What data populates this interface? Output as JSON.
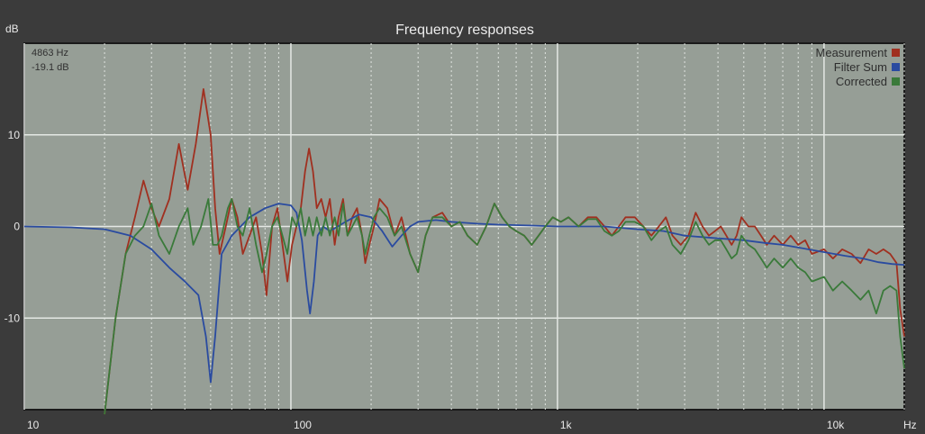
{
  "chart_data": {
    "type": "line",
    "title": "Frequency responses",
    "ylabel": "dB",
    "xlabel": "Hz",
    "x_scale": "log",
    "xlim": [
      10,
      20000
    ],
    "ylim": [
      -20,
      20
    ],
    "grid": true,
    "legend_position": "top-right",
    "background_color": "#969e96",
    "x_tick_labels": [
      {
        "value": 10,
        "label": "10"
      },
      {
        "value": 100,
        "label": "100"
      },
      {
        "value": 1000,
        "label": "1k"
      },
      {
        "value": 10000,
        "label": "10k"
      }
    ],
    "y_tick_labels": [
      {
        "value": 10,
        "label": "10"
      },
      {
        "value": 0,
        "label": "0"
      },
      {
        "value": -10,
        "label": "-10"
      }
    ],
    "readout": {
      "frequency": "4863 Hz",
      "level": "-19.1 dB"
    },
    "series": [
      {
        "name": "Measurement",
        "color": "#a03020",
        "points": [
          [
            20,
            -20.5
          ],
          [
            22,
            -10
          ],
          [
            24,
            -3
          ],
          [
            26,
            1
          ],
          [
            28,
            5
          ],
          [
            30,
            2
          ],
          [
            32,
            0
          ],
          [
            35,
            3
          ],
          [
            38,
            9
          ],
          [
            41,
            4
          ],
          [
            44,
            9
          ],
          [
            47,
            15
          ],
          [
            50,
            10
          ],
          [
            52,
            2
          ],
          [
            54,
            -3
          ],
          [
            57,
            0
          ],
          [
            60,
            3
          ],
          [
            63,
            1
          ],
          [
            66,
            -3
          ],
          [
            70,
            -1
          ],
          [
            74,
            1
          ],
          [
            78,
            -3
          ],
          [
            81,
            -7.5
          ],
          [
            85,
            0
          ],
          [
            89,
            2
          ],
          [
            93,
            -2
          ],
          [
            97,
            -6
          ],
          [
            101,
            -2
          ],
          [
            105,
            0
          ],
          [
            109,
            2
          ],
          [
            113,
            6
          ],
          [
            117,
            8.5
          ],
          [
            121,
            6
          ],
          [
            125,
            2
          ],
          [
            130,
            3
          ],
          [
            135,
            1
          ],
          [
            140,
            3
          ],
          [
            146,
            -2
          ],
          [
            151,
            1
          ],
          [
            157,
            3
          ],
          [
            163,
            -1
          ],
          [
            170,
            1
          ],
          [
            177,
            2
          ],
          [
            185,
            -1
          ],
          [
            190,
            -4
          ],
          [
            197,
            -2
          ],
          [
            205,
            0
          ],
          [
            215,
            3
          ],
          [
            230,
            2
          ],
          [
            245,
            -1
          ],
          [
            260,
            1
          ],
          [
            280,
            -3
          ],
          [
            300,
            -5
          ],
          [
            320,
            -1
          ],
          [
            340,
            1
          ],
          [
            370,
            1.5
          ],
          [
            400,
            0
          ],
          [
            430,
            0.5
          ],
          [
            460,
            -1
          ],
          [
            500,
            -2
          ],
          [
            540,
            0
          ],
          [
            580,
            2.5
          ],
          [
            620,
            1
          ],
          [
            660,
            0
          ],
          [
            700,
            -0.5
          ],
          [
            750,
            -1
          ],
          [
            800,
            -2
          ],
          [
            850,
            -1
          ],
          [
            900,
            0
          ],
          [
            960,
            1
          ],
          [
            1030,
            0.5
          ],
          [
            1100,
            1
          ],
          [
            1200,
            0
          ],
          [
            1300,
            1
          ],
          [
            1400,
            1
          ],
          [
            1500,
            0
          ],
          [
            1600,
            -1
          ],
          [
            1700,
            0
          ],
          [
            1800,
            1
          ],
          [
            1950,
            1
          ],
          [
            2100,
            0
          ],
          [
            2250,
            -1
          ],
          [
            2400,
            0
          ],
          [
            2550,
            1
          ],
          [
            2700,
            -1
          ],
          [
            2900,
            -2
          ],
          [
            3100,
            -1
          ],
          [
            3300,
            1.5
          ],
          [
            3500,
            0
          ],
          [
            3700,
            -1
          ],
          [
            3900,
            -0.5
          ],
          [
            4100,
            0
          ],
          [
            4300,
            -1
          ],
          [
            4500,
            -2
          ],
          [
            4700,
            -1
          ],
          [
            4900,
            1
          ],
          [
            5200,
            0
          ],
          [
            5500,
            0
          ],
          [
            5800,
            -1
          ],
          [
            6100,
            -2
          ],
          [
            6500,
            -1
          ],
          [
            7000,
            -2
          ],
          [
            7500,
            -1
          ],
          [
            8000,
            -2
          ],
          [
            8500,
            -1.5
          ],
          [
            9000,
            -3
          ],
          [
            10000,
            -2.5
          ],
          [
            10800,
            -3.5
          ],
          [
            11700,
            -2.5
          ],
          [
            12700,
            -3
          ],
          [
            13700,
            -4
          ],
          [
            14700,
            -2.5
          ],
          [
            15700,
            -3
          ],
          [
            16700,
            -2.5
          ],
          [
            17700,
            -3
          ],
          [
            18700,
            -4
          ],
          [
            19300,
            -9
          ],
          [
            20000,
            -12
          ]
        ]
      },
      {
        "name": "Filter Sum",
        "color": "#2a4ba0",
        "points": [
          [
            10,
            0
          ],
          [
            15,
            -0.1
          ],
          [
            20,
            -0.3
          ],
          [
            25,
            -1
          ],
          [
            30,
            -2.5
          ],
          [
            35,
            -4.5
          ],
          [
            40,
            -6
          ],
          [
            45,
            -7.5
          ],
          [
            48,
            -12
          ],
          [
            50,
            -17
          ],
          [
            52,
            -12
          ],
          [
            55,
            -3
          ],
          [
            60,
            -1
          ],
          [
            70,
            1
          ],
          [
            80,
            2
          ],
          [
            90,
            2.5
          ],
          [
            100,
            2.3
          ],
          [
            105,
            1.5
          ],
          [
            110,
            -1.5
          ],
          [
            115,
            -7
          ],
          [
            118,
            -9.5
          ],
          [
            122,
            -6
          ],
          [
            126,
            -1
          ],
          [
            132,
            0
          ],
          [
            140,
            -0.5
          ],
          [
            150,
            0
          ],
          [
            160,
            0.5
          ],
          [
            180,
            1.3
          ],
          [
            200,
            1
          ],
          [
            220,
            -0.5
          ],
          [
            240,
            -2.2
          ],
          [
            260,
            -1
          ],
          [
            280,
            0
          ],
          [
            300,
            0.5
          ],
          [
            350,
            0.7
          ],
          [
            400,
            0.5
          ],
          [
            500,
            0.3
          ],
          [
            600,
            0.2
          ],
          [
            800,
            0.1
          ],
          [
            1000,
            0
          ],
          [
            1500,
            0
          ],
          [
            2000,
            -0.3
          ],
          [
            2500,
            -0.5
          ],
          [
            3000,
            -1
          ],
          [
            4000,
            -1.3
          ],
          [
            5000,
            -1.5
          ],
          [
            6000,
            -1.8
          ],
          [
            7000,
            -2
          ],
          [
            8000,
            -2.3
          ],
          [
            10000,
            -2.8
          ],
          [
            12000,
            -3.2
          ],
          [
            14000,
            -3.5
          ],
          [
            16000,
            -3.9
          ],
          [
            18000,
            -4.1
          ],
          [
            20000,
            -4.2
          ]
        ]
      },
      {
        "name": "Corrected",
        "color": "#3a7a3a",
        "points": [
          [
            20,
            -20.5
          ],
          [
            22,
            -10
          ],
          [
            24,
            -3
          ],
          [
            26,
            -1
          ],
          [
            28,
            0
          ],
          [
            30,
            2.5
          ],
          [
            32,
            -1
          ],
          [
            35,
            -3
          ],
          [
            38,
            0
          ],
          [
            41,
            2
          ],
          [
            43,
            -2
          ],
          [
            46,
            0
          ],
          [
            49,
            3
          ],
          [
            51,
            -2
          ],
          [
            53,
            -2
          ],
          [
            55,
            -1
          ],
          [
            58,
            2
          ],
          [
            60,
            3
          ],
          [
            63,
            0
          ],
          [
            66,
            -1
          ],
          [
            70,
            2
          ],
          [
            74,
            -2
          ],
          [
            78,
            -5
          ],
          [
            81,
            -3
          ],
          [
            85,
            0
          ],
          [
            89,
            1
          ],
          [
            93,
            -1
          ],
          [
            97,
            -3
          ],
          [
            101,
            1
          ],
          [
            105,
            0
          ],
          [
            109,
            2
          ],
          [
            113,
            -1
          ],
          [
            117,
            1
          ],
          [
            121,
            -1
          ],
          [
            125,
            1
          ],
          [
            130,
            -1
          ],
          [
            135,
            1
          ],
          [
            140,
            -1
          ],
          [
            146,
            1
          ],
          [
            151,
            -1
          ],
          [
            157,
            2.5
          ],
          [
            163,
            -1
          ],
          [
            170,
            0
          ],
          [
            177,
            1
          ],
          [
            185,
            -1
          ],
          [
            190,
            -3
          ],
          [
            197,
            -1
          ],
          [
            205,
            1
          ],
          [
            215,
            2
          ],
          [
            230,
            1
          ],
          [
            245,
            -1
          ],
          [
            260,
            0
          ],
          [
            280,
            -3
          ],
          [
            300,
            -5
          ],
          [
            320,
            -1
          ],
          [
            340,
            1
          ],
          [
            370,
            1
          ],
          [
            400,
            0
          ],
          [
            430,
            0.5
          ],
          [
            460,
            -1
          ],
          [
            500,
            -2
          ],
          [
            540,
            0
          ],
          [
            580,
            2.5
          ],
          [
            620,
            1
          ],
          [
            660,
            0
          ],
          [
            700,
            -0.5
          ],
          [
            750,
            -1
          ],
          [
            800,
            -2
          ],
          [
            850,
            -1
          ],
          [
            900,
            0
          ],
          [
            960,
            1
          ],
          [
            1030,
            0.5
          ],
          [
            1100,
            1
          ],
          [
            1200,
            0
          ],
          [
            1300,
            0.8
          ],
          [
            1400,
            0.8
          ],
          [
            1500,
            -0.5
          ],
          [
            1600,
            -1
          ],
          [
            1700,
            -0.5
          ],
          [
            1800,
            0.5
          ],
          [
            1950,
            0.5
          ],
          [
            2100,
            0
          ],
          [
            2250,
            -1.5
          ],
          [
            2400,
            -0.5
          ],
          [
            2550,
            0
          ],
          [
            2700,
            -2
          ],
          [
            2900,
            -3
          ],
          [
            3100,
            -1.5
          ],
          [
            3300,
            0.5
          ],
          [
            3500,
            -1
          ],
          [
            3700,
            -2
          ],
          [
            3900,
            -1.5
          ],
          [
            4100,
            -1.5
          ],
          [
            4300,
            -2.5
          ],
          [
            4500,
            -3.5
          ],
          [
            4700,
            -3
          ],
          [
            4900,
            -1
          ],
          [
            5200,
            -2
          ],
          [
            5500,
            -2.5
          ],
          [
            5800,
            -3.5
          ],
          [
            6100,
            -4.5
          ],
          [
            6500,
            -3.5
          ],
          [
            7000,
            -4.5
          ],
          [
            7500,
            -3.5
          ],
          [
            8000,
            -4.5
          ],
          [
            8500,
            -5
          ],
          [
            9000,
            -6
          ],
          [
            10000,
            -5.5
          ],
          [
            10800,
            -7
          ],
          [
            11700,
            -6
          ],
          [
            12700,
            -7
          ],
          [
            13700,
            -8
          ],
          [
            14700,
            -7
          ],
          [
            15700,
            -9.5
          ],
          [
            16700,
            -7
          ],
          [
            17700,
            -6.5
          ],
          [
            18700,
            -7
          ],
          [
            19300,
            -12
          ],
          [
            20000,
            -15.5
          ]
        ]
      }
    ]
  }
}
